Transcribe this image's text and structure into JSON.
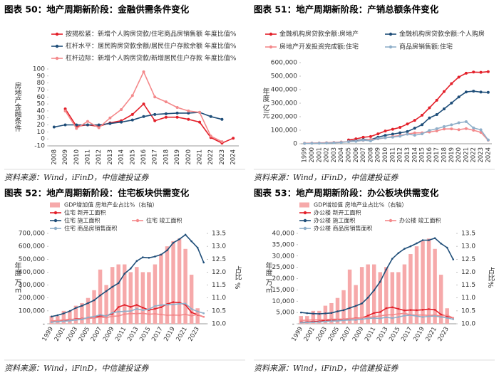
{
  "chart_data": [
    {
      "type": "line",
      "title": "图表 50：地产周期新阶段：金融供需条件变化",
      "source": "资料来源：Wind，iFinD，中信建投证券",
      "ylabel": "房地产金融条件",
      "categories": [
        "2008",
        "2009",
        "2010",
        "2011",
        "2012",
        "2013",
        "2014",
        "2015",
        "2016",
        "2017",
        "2018",
        "2019",
        "2020",
        "2021",
        "2022",
        "2023",
        "2024"
      ],
      "ylim": [
        -10,
        100
      ],
      "yticks": [
        -10,
        0,
        10,
        20,
        30,
        40,
        50,
        60,
        70,
        80,
        90,
        100
      ],
      "grid": false,
      "series": [
        {
          "name": "按揭松紧：新增个人购房贷款/住宅商品房销售额 年度比值%",
          "color": "#e3202a",
          "values": [
            null,
            43,
            18,
            20,
            18,
            23,
            26,
            35,
            50,
            26,
            31,
            31,
            28,
            24,
            2,
            -6,
            1
          ]
        },
        {
          "name": "杠杆水平：居民购房贷款余额/居民住户存款余额 年度比值%",
          "color": "#1f4e79",
          "values": [
            17,
            20,
            20,
            20,
            20,
            22,
            24,
            27,
            32,
            35,
            36,
            37,
            37,
            38,
            32,
            28,
            null
          ]
        },
        {
          "name": "杠杆边际：新增个人购房贷款/新增居民住户存款 年度比值%",
          "color": "#f4898b",
          "values": [
            null,
            40,
            15,
            25,
            16,
            30,
            42,
            62,
            96,
            60,
            53,
            45,
            40,
            38,
            4,
            -4,
            null
          ]
        }
      ]
    },
    {
      "type": "line",
      "title": "图表 51：地产周期新阶段：产销总额条件变化",
      "source": "资料来源：Wind，iFinD，中信建投证券",
      "ylabel": "年度 亿元",
      "categories": [
        "1999",
        "2000",
        "2001",
        "2002",
        "2003",
        "2004",
        "2005",
        "2006",
        "2007",
        "2008",
        "2009",
        "2010",
        "2011",
        "2012",
        "2013",
        "2014",
        "2015",
        "2016",
        "2017",
        "2018",
        "2019",
        "2020",
        "2021",
        "2022",
        "2023",
        "2024"
      ],
      "ylim": [
        0,
        600000
      ],
      "yticks": [
        0,
        {
          "value": 100000,
          "label": "100,000"
        },
        {
          "value": 200000,
          "label": "200,000"
        },
        {
          "value": 300000,
          "label": "300,000"
        },
        {
          "value": 400000,
          "label": "400,000"
        },
        {
          "value": 500000,
          "label": "500,000"
        },
        {
          "value": 600000,
          "label": "600,000"
        }
      ],
      "grid": false,
      "series": [
        {
          "name": "金融机构房贷款余额:房地产",
          "color": "#e3202a",
          "values": [
            null,
            null,
            null,
            null,
            null,
            null,
            28000,
            36000,
            48000,
            53000,
            73000,
            94000,
            107000,
            121000,
            146000,
            173000,
            211000,
            266000,
            322000,
            386000,
            445000,
            493000,
            522000,
            530000,
            528000,
            533000
          ]
        },
        {
          "name": "金融机构房贷款余额:个人购房",
          "color": "#1f4e79",
          "values": [
            null,
            null,
            null,
            null,
            null,
            null,
            18000,
            22000,
            30000,
            30000,
            48000,
            62000,
            71000,
            81000,
            90000,
            115000,
            141000,
            191000,
            216000,
            258000,
            301000,
            346000,
            383000,
            389000,
            382000,
            380000
          ]
        },
        {
          "name": "房地产开发投资完成额:住宅",
          "color": "#f4898b",
          "values": [
            4000,
            5000,
            6200,
            7800,
            10000,
            13000,
            16000,
            19000,
            25000,
            30000,
            36000,
            44000,
            53000,
            61000,
            72000,
            80000,
            81000,
            87000,
            95000,
            109000,
            110000,
            104000,
            112000,
            100000,
            84000,
            26000
          ]
        },
        {
          "name": "商品房销售额:住宅",
          "color": "#8fafc9",
          "values": [
            2000,
            3200,
            4000,
            5000,
            7000,
            10000,
            15000,
            18000,
            26000,
            21000,
            38000,
            44000,
            49000,
            56000,
            71000,
            63000,
            73000,
            99000,
            111000,
            127000,
            140000,
            155000,
            163000,
            117000,
            103000,
            28000
          ]
        }
      ]
    },
    {
      "type": "combo",
      "title": "图表 52：地产周期新阶段：住宅板块供需变化",
      "source": "资料来源：Wind，iFinD，中信建投证券",
      "ylabel": "年度 万㎡",
      "y2label": "占比 %",
      "categories": [
        "1999",
        null,
        "2001",
        null,
        "2003",
        null,
        "2005",
        null,
        "2007",
        null,
        "2009",
        null,
        "2011",
        null,
        "2013",
        null,
        "2015",
        null,
        "2017",
        null,
        "2019",
        null,
        "2021",
        null,
        "2023",
        null
      ],
      "ylim": [
        0,
        700000
      ],
      "yticks": [
        {
          "value": 0,
          "label": "-"
        },
        {
          "value": 100000,
          "label": "100,000"
        },
        {
          "value": 200000,
          "label": "200,000"
        },
        {
          "value": 300000,
          "label": "300,000"
        },
        {
          "value": 400000,
          "label": "400,000"
        },
        {
          "value": 500000,
          "label": "500,000"
        },
        {
          "value": 600000,
          "label": "600,000"
        },
        {
          "value": 700000,
          "label": "700,000"
        }
      ],
      "y2lim": [
        10,
        13.5
      ],
      "y2ticks": [
        {
          "value": 10,
          "label": "10.0"
        },
        10.5,
        {
          "value": 11,
          "label": "11.0"
        },
        11.5,
        {
          "value": 12,
          "label": "12.0"
        },
        12.5,
        {
          "value": 13,
          "label": "13.0"
        },
        13.5
      ],
      "grid": false,
      "series": [
        {
          "name": "GDP增加值 房地产业占比%（右轴）",
          "type": "bar",
          "axis": "y2",
          "color": "#f6a9aa",
          "values": [
            10.3,
            10.3,
            10.5,
            10.5,
            10.7,
            10.8,
            11.0,
            11.3,
            12.1,
            11.5,
            12.2,
            12.3,
            12.3,
            12.0,
            12.2,
            12.0,
            12.0,
            12.3,
            12.7,
            13.0,
            13.2,
            13.3,
            12.9,
            11.9,
            10.6,
            null
          ]
        },
        {
          "name": "住宅 新开工面积",
          "type": "line",
          "color": "#e3202a",
          "values": [
            17800,
            19900,
            24500,
            30000,
            37900,
            39800,
            43500,
            50000,
            61000,
            61800,
            77200,
            129400,
            146000,
            130700,
            145800,
            124900,
            106700,
            115900,
            128100,
            153000,
            167500,
            164300,
            146600,
            88100,
            69300,
            53700
          ]
        },
        {
          "name": "住宅 施工面积",
          "type": "line",
          "color": "#1f4e79",
          "values": [
            56000,
            66000,
            80000,
            98000,
            123000,
            140000,
            160000,
            182000,
            220000,
            253000,
            286000,
            315000,
            388000,
            428000,
            486000,
            515000,
            511000,
            521000,
            536000,
            569000,
            627000,
            655000,
            690000,
            639000,
            589000,
            475000
          ]
        },
        {
          "name": "住宅 竣工面积",
          "type": "line",
          "color": "#f4898b",
          "values": [
            21400,
            25100,
            29900,
            34900,
            34800,
            37900,
            40600,
            45500,
            49800,
            48000,
            57700,
            61200,
            74300,
            79000,
            78700,
            80900,
            73800,
            77200,
            71800,
            66000,
            68000,
            65900,
            73000,
            62500,
            72400,
            53700
          ]
        },
        {
          "name": "住宅 商品房销售面积",
          "type": "line",
          "color": "#8fafc9",
          "values": [
            12900,
            16600,
            19900,
            23700,
            29800,
            33800,
            49600,
            55400,
            70100,
            59300,
            86200,
            93400,
            96500,
            98500,
            115700,
            105200,
            112400,
            137500,
            144800,
            147900,
            150100,
            154900,
            156500,
            114600,
            94800,
            81400
          ]
        }
      ]
    },
    {
      "type": "combo",
      "title": "图表 53：地产周期新阶段：办公板块供需变化",
      "source": "资料来源：Wind，iFinD，中信建投证券",
      "ylabel": "年度 万㎡",
      "y2label": "占比%",
      "categories": [
        "1999",
        null,
        "2001",
        null,
        "2003",
        null,
        "2005",
        null,
        "2007",
        null,
        "2009",
        null,
        "2011",
        null,
        "2013",
        null,
        "2015",
        null,
        "2017",
        null,
        "2019",
        null,
        "2021",
        null,
        "2023",
        null
      ],
      "ylim": [
        0,
        40000
      ],
      "yticks": [
        {
          "value": 0,
          "label": "-"
        },
        {
          "value": 5000,
          "label": "5,000"
        },
        {
          "value": 10000,
          "label": "10,000"
        },
        {
          "value": 15000,
          "label": "15,000"
        },
        {
          "value": 20000,
          "label": "20,000"
        },
        {
          "value": 25000,
          "label": "25,000"
        },
        {
          "value": 30000,
          "label": "30,000"
        },
        {
          "value": 35000,
          "label": "35,000"
        },
        {
          "value": 40000,
          "label": "40,000"
        }
      ],
      "y2lim": [
        10,
        13.5
      ],
      "y2ticks": [
        {
          "value": 10,
          "label": "10.0"
        },
        10.5,
        {
          "value": 11,
          "label": "11.0"
        },
        11.5,
        {
          "value": 12,
          "label": "12.0"
        },
        12.5,
        {
          "value": 13,
          "label": "13.0"
        },
        13.5
      ],
      "grid": false,
      "series": [
        {
          "name": "GDP增加值 房地产业占比%（右轴）",
          "type": "bar",
          "axis": "y2",
          "color": "#f6a9aa",
          "values": [
            10.3,
            10.3,
            10.5,
            10.5,
            10.7,
            10.8,
            11.0,
            11.3,
            12.1,
            11.5,
            12.2,
            12.3,
            12.3,
            12.0,
            12.2,
            12.0,
            12.0,
            12.3,
            12.7,
            13.0,
            13.2,
            13.3,
            12.9,
            11.9,
            10.6,
            null
          ]
        },
        {
          "name": "办公楼 新开工面积",
          "type": "line",
          "color": "#e3202a",
          "values": [
            700,
            800,
            1000,
            1100,
            1500,
            1600,
            1800,
            1800,
            2200,
            2500,
            2600,
            3600,
            4800,
            5200,
            6900,
            7300,
            6600,
            5900,
            6100,
            6000,
            6200,
            6500,
            6200,
            4100,
            3300,
            2600
          ]
        },
        {
          "name": "办公楼 施工面积",
          "type": "line",
          "color": "#1f4e79",
          "values": [
            5000,
            4700,
            4500,
            4400,
            4600,
            4800,
            5500,
            6000,
            7000,
            7900,
            9000,
            11600,
            14800,
            18600,
            24000,
            28800,
            31300,
            33200,
            34300,
            35600,
            37000,
            37000,
            37900,
            35500,
            33700,
            28500
          ]
        },
        {
          "name": "办公楼 竣工面积",
          "type": "line",
          "color": "#f4898b",
          "values": [
            1500,
            1600,
            1700,
            1800,
            1900,
            2000,
            2000,
            2100,
            2300,
            2400,
            2700,
            2900,
            3100,
            3500,
            3900,
            4000,
            4400,
            4600,
            4000,
            3800,
            3900,
            3700,
            3900,
            3400,
            3800,
            2600
          ]
        },
        {
          "name": "办公楼 商品房销售面积",
          "type": "line",
          "color": "#8fafc9",
          "values": [
            500,
            600,
            700,
            800,
            1000,
            1200,
            1300,
            1500,
            1700,
            1700,
            2000,
            2400,
            2500,
            2400,
            2900,
            2500,
            3000,
            3600,
            3800,
            3400,
            3000,
            3300,
            3400,
            3000,
            2600,
            2000
          ]
        }
      ]
    }
  ]
}
